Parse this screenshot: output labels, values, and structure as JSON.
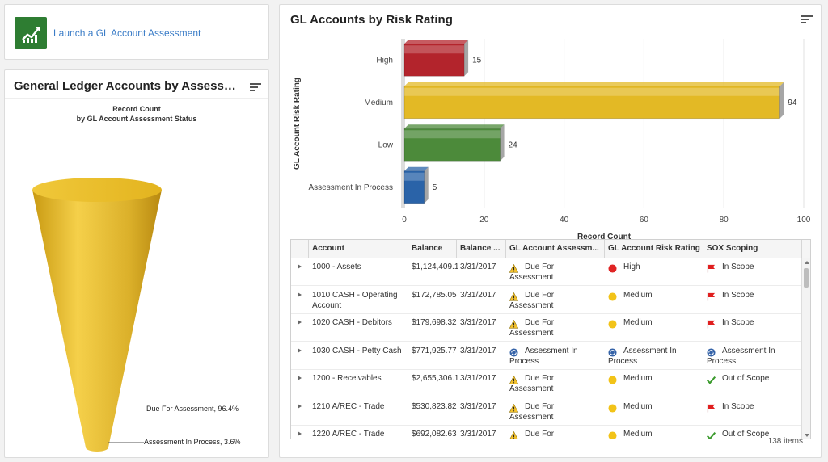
{
  "launch": {
    "link_label": "Launch a GL Account Assessment"
  },
  "funnel_panel": {
    "title": "General Ledger Accounts by Assessment S...",
    "subtitle_line1": "Record Count",
    "subtitle_line2": "by GL Account Assessment Status"
  },
  "risk_panel": {
    "title": "GL Accounts by Risk Rating"
  },
  "chart_data": [
    {
      "type": "funnel",
      "title": "Record Count",
      "subtitle": "by GL Account Assessment Status",
      "categories": [
        "Due For Assessment",
        "Assessment In Process"
      ],
      "percents": [
        96.4,
        3.6
      ],
      "labels": [
        "Due For Assessment, 96.4%",
        "Assessment In Process, 3.6%"
      ],
      "colors": [
        "#e8bf2a",
        "#2f6eb5"
      ]
    },
    {
      "type": "bar",
      "orientation": "horizontal",
      "categories": [
        "High",
        "Medium",
        "Low",
        "Assessment In Process"
      ],
      "values": [
        15,
        94,
        24,
        5
      ],
      "colors": [
        "#b3242c",
        "#e3b925",
        "#4c8a3a",
        "#2a63a8"
      ],
      "xlabel": "Record Count",
      "ylabel": "GL Account Risk Rating",
      "xlim": [
        0,
        100
      ],
      "xticks": [
        "0",
        "20",
        "40",
        "60",
        "80",
        "100"
      ],
      "grid": true
    }
  ],
  "grid": {
    "columns": [
      "Account",
      "Balance",
      "Balance ...",
      "GL Account Assessm...",
      "GL Account Risk Rating",
      "SOX Scoping"
    ],
    "rows": [
      {
        "account": "1000 - Assets",
        "balance": "$1,124,409.1",
        "date": "3/31/2017",
        "status": "Due For Assessment",
        "status_icon": "warning-icon",
        "risk": "High",
        "risk_icon": "red-dot-icon",
        "sox": "In Scope",
        "sox_icon": "red-flag-icon"
      },
      {
        "account": "1010 CASH - Operating Account",
        "balance": "$172,785.05",
        "date": "3/31/2017",
        "status": "Due For Assessment",
        "status_icon": "warning-icon",
        "risk": "Medium",
        "risk_icon": "yellow-dot-icon",
        "sox": "In Scope",
        "sox_icon": "red-flag-icon"
      },
      {
        "account": "1020 CASH - Debitors",
        "balance": "$179,698.32",
        "date": "3/31/2017",
        "status": "Due For Assessment",
        "status_icon": "warning-icon",
        "risk": "Medium",
        "risk_icon": "yellow-dot-icon",
        "sox": "In Scope",
        "sox_icon": "red-flag-icon"
      },
      {
        "account": "1030 CASH - Petty Cash",
        "balance": "$771,925.77",
        "date": "3/31/2017",
        "status": "Assessment In Process",
        "status_icon": "in-process-icon",
        "risk": "Assessment In Process",
        "risk_icon": "in-process-icon",
        "sox": "Assessment In Process",
        "sox_icon": "in-process-icon"
      },
      {
        "account": "1200 - Receivables",
        "balance": "$2,655,306.1",
        "date": "3/31/2017",
        "status": "Due For Assessment",
        "status_icon": "warning-icon",
        "risk": "Medium",
        "risk_icon": "yellow-dot-icon",
        "sox": "Out of Scope",
        "sox_icon": "green-check-icon"
      },
      {
        "account": "1210 A/REC - Trade",
        "balance": "$530,823.82",
        "date": "3/31/2017",
        "status": "Due For Assessment",
        "status_icon": "warning-icon",
        "risk": "Medium",
        "risk_icon": "yellow-dot-icon",
        "sox": "In Scope",
        "sox_icon": "red-flag-icon"
      },
      {
        "account": "1220 A/REC - Trade",
        "balance": "$692,082.63",
        "date": "3/31/2017",
        "status": "Due For Assessment",
        "status_icon": "warning-icon",
        "risk": "Medium",
        "risk_icon": "yellow-dot-icon",
        "sox": "Out of Scope",
        "sox_icon": "green-check-icon"
      }
    ],
    "items_count": "138 items"
  }
}
